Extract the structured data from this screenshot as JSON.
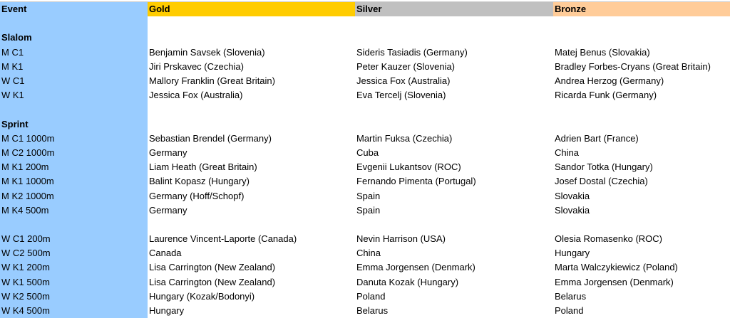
{
  "header": {
    "event": "Event",
    "gold": "Gold",
    "silver": "Silver",
    "bronze": "Bronze"
  },
  "colors": {
    "event_column": "#99ccff",
    "gold": "#ffcc00",
    "silver": "#c0c0c0",
    "bronze": "#ffcc99"
  },
  "rows": [
    {
      "event": "",
      "gold": "",
      "silver": "",
      "bronze": ""
    },
    {
      "event": "Slalom",
      "gold": "",
      "silver": "",
      "bronze": "",
      "section": true
    },
    {
      "event": "M C1",
      "gold": "Benjamin Savsek (Slovenia)",
      "silver": "Sideris Tasiadis (Germany)",
      "bronze": "Matej Benus (Slovakia)"
    },
    {
      "event": "M K1",
      "gold": "Jiri Prskavec (Czechia)",
      "silver": "Peter Kauzer (Slovenia)",
      "bronze": "Bradley Forbes-Cryans (Great Britain)"
    },
    {
      "event": "W C1",
      "gold": "Mallory Franklin (Great Britain)",
      "silver": "Jessica Fox (Australia)",
      "bronze": "Andrea Herzog (Germany)"
    },
    {
      "event": "W K1",
      "gold": "Jessica Fox (Australia)",
      "silver": "Eva Tercelj (Slovenia)",
      "bronze": "Ricarda Funk (Germany)"
    },
    {
      "event": "",
      "gold": "",
      "silver": "",
      "bronze": ""
    },
    {
      "event": "Sprint",
      "gold": "",
      "silver": "",
      "bronze": "",
      "section": true
    },
    {
      "event": "M C1 1000m",
      "gold": "Sebastian Brendel (Germany)",
      "silver": "Martin Fuksa (Czechia)",
      "bronze": "Adrien Bart (France)"
    },
    {
      "event": "M C2 1000m",
      "gold": "Germany",
      "silver": "Cuba",
      "bronze": "China"
    },
    {
      "event": "M K1 200m",
      "gold": "Liam Heath (Great Britain)",
      "silver": "Evgenii Lukantsov (ROC)",
      "bronze": "Sandor Totka (Hungary)"
    },
    {
      "event": "M K1 1000m",
      "gold": "Balint Kopasz (Hungary)",
      "silver": "Fernando Pimenta (Portugal)",
      "bronze": "Josef Dostal (Czechia)"
    },
    {
      "event": "M K2 1000m",
      "gold": "Germany (Hoff/Schopf)",
      "silver": "Spain",
      "bronze": "Slovakia"
    },
    {
      "event": "M K4 500m",
      "gold": "Germany",
      "silver": "Spain",
      "bronze": "Slovakia"
    },
    {
      "event": "",
      "gold": "",
      "silver": "",
      "bronze": ""
    },
    {
      "event": "W C1 200m",
      "gold": "Laurence Vincent-Laporte (Canada)",
      "silver": "Nevin Harrison (USA)",
      "bronze": "Olesia Romasenko (ROC)"
    },
    {
      "event": "W C2 500m",
      "gold": "Canada",
      "silver": "China",
      "bronze": "Hungary"
    },
    {
      "event": "W K1 200m",
      "gold": "Lisa Carrington (New Zealand)",
      "silver": "Emma Jorgensen (Denmark)",
      "bronze": "Marta Walczykiewicz (Poland)"
    },
    {
      "event": "W K1 500m",
      "gold": "Lisa Carrington (New Zealand)",
      "silver": "Danuta Kozak (Hungary)",
      "bronze": "Emma Jorgensen (Denmark)"
    },
    {
      "event": "W K2 500m",
      "gold": "Hungary (Kozak/Bodonyi)",
      "silver": "Poland",
      "bronze": "Belarus"
    },
    {
      "event": "W K4 500m",
      "gold": "Hungary",
      "silver": "Belarus",
      "bronze": "Poland"
    }
  ]
}
